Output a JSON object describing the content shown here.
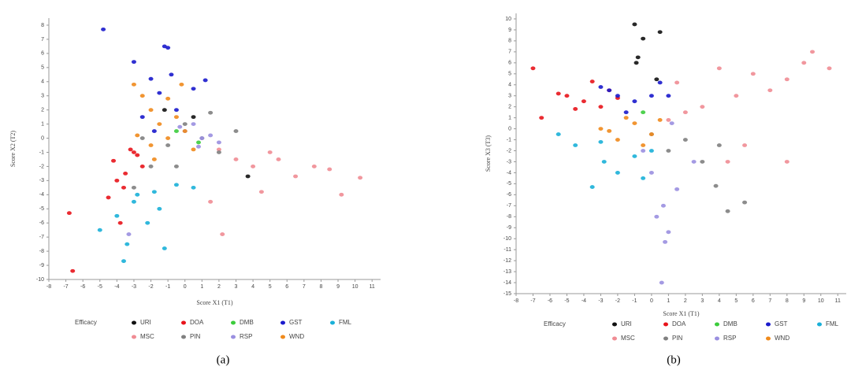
{
  "chart_data": [
    {
      "type": "scatter",
      "caption": "(a)",
      "xlabel": "Score X1 (T1)",
      "ylabel": "Score X2 (T2)",
      "legend_title": "Efficacy",
      "xlim": [
        -8,
        11.5
      ],
      "xticks": [
        -8,
        -7,
        -6,
        -5,
        -4,
        -3,
        -2,
        -1,
        0,
        1,
        2,
        3,
        4,
        5,
        6,
        7,
        8,
        9,
        10,
        11
      ],
      "ylim": [
        -10,
        8.5
      ],
      "yticks": [
        -10,
        -9,
        -8,
        -7,
        -6,
        -5,
        -4,
        -3,
        -2,
        -1,
        0,
        1,
        2,
        3,
        4,
        5,
        6,
        7,
        8
      ],
      "series": [
        {
          "name": "URI",
          "color": "#111111",
          "x": [
            3.7,
            -1.2,
            0.5
          ],
          "values": [
            -2.7,
            2,
            1.5
          ]
        },
        {
          "name": "DOA",
          "color": "#e8141b",
          "x": [
            -6.8,
            -6.6,
            -4.5,
            -4,
            -3.5,
            -3,
            -3.8,
            -4.2,
            -2.8,
            -3.2,
            -3.6,
            -2.5
          ],
          "values": [
            -5.3,
            -9.4,
            -4.2,
            -3,
            -2.5,
            -1,
            -6,
            -1.6,
            -1.2,
            -0.8,
            -3.5,
            -2
          ]
        },
        {
          "name": "DMB",
          "color": "#3ccc3c",
          "x": [
            -0.5,
            0.8
          ],
          "values": [
            0.5,
            -0.3
          ]
        },
        {
          "name": "GST",
          "color": "#1a1acc",
          "x": [
            -4.8,
            -3,
            -1.2,
            -1,
            -0.8,
            -2,
            -1.5,
            -0.5,
            0.5,
            1.2,
            -2.5,
            -1.8
          ],
          "values": [
            7.7,
            5.4,
            6.5,
            6.4,
            4.5,
            4.2,
            3.2,
            2,
            3.5,
            4.1,
            1.5,
            0.5
          ]
        },
        {
          "name": "FML",
          "color": "#1ab0d8",
          "x": [
            -3.6,
            -3.4,
            -1.2,
            -5,
            -4,
            -2.2,
            -1.5,
            -2.8,
            -0.5,
            0.5,
            -3,
            -1.8
          ],
          "values": [
            -8.7,
            -7.5,
            -7.8,
            -6.5,
            -5.5,
            -6,
            -5,
            -4,
            -3.3,
            -3.5,
            -4.5,
            -3.8
          ]
        },
        {
          "name": "MSC",
          "color": "#f08c94",
          "x": [
            10.3,
            9.2,
            8.5,
            7.6,
            6.5,
            5,
            4,
            3,
            2,
            4.5,
            2.2,
            1.5,
            5.5
          ],
          "values": [
            -2.8,
            -4,
            -2.2,
            -2,
            -2.7,
            -1,
            -2,
            -1.5,
            -0.8,
            -3.8,
            -6.8,
            -4.5,
            -1.5
          ]
        },
        {
          "name": "PIN",
          "color": "#808080",
          "x": [
            -3,
            -2,
            -1,
            0,
            1,
            2,
            3,
            1.5,
            -0.5,
            -2.5
          ],
          "values": [
            -3.5,
            -2,
            -0.5,
            1,
            0,
            -1,
            0.5,
            1.8,
            -2,
            0
          ]
        },
        {
          "name": "RSP",
          "color": "#9a8fe0",
          "x": [
            0,
            0.5,
            1,
            1.5,
            0.8,
            -0.3,
            2,
            -3.3
          ],
          "values": [
            0.5,
            1,
            0,
            0.2,
            -0.6,
            0.8,
            -0.3,
            -6.8
          ]
        },
        {
          "name": "WND",
          "color": "#f08a1c",
          "x": [
            -3,
            -2.5,
            -2,
            -1.5,
            -1,
            -0.5,
            0,
            -2,
            -1,
            -1.8,
            -0.2,
            -2.8,
            0.5
          ],
          "values": [
            3.8,
            3,
            2,
            1,
            0,
            1.5,
            0.5,
            -0.5,
            2.8,
            -1.5,
            3.8,
            0.2,
            -0.8
          ]
        }
      ]
    },
    {
      "type": "scatter",
      "caption": "(b)",
      "xlabel": "Score X1 (T1)",
      "ylabel": "Score X3 (T3)",
      "legend_title": "Efficacy",
      "xlim": [
        -8,
        11.5
      ],
      "xticks": [
        -8,
        -7,
        -6,
        -5,
        -4,
        -3,
        -2,
        -1,
        0,
        1,
        2,
        3,
        4,
        5,
        6,
        7,
        8,
        9,
        10,
        11
      ],
      "ylim": [
        -15,
        10.5
      ],
      "yticks": [
        -15,
        -14,
        -13,
        -12,
        -11,
        -10,
        -9,
        -8,
        -7,
        -6,
        -5,
        -4,
        -3,
        -2,
        -1,
        0,
        1,
        2,
        3,
        4,
        5,
        6,
        7,
        8,
        9,
        10
      ],
      "series": [
        {
          "name": "URI",
          "color": "#111111",
          "x": [
            -1,
            -0.5,
            -0.8,
            -0.9,
            0.5,
            0.3
          ],
          "values": [
            9.5,
            8.2,
            6.5,
            6,
            8.8,
            4.5
          ]
        },
        {
          "name": "DOA",
          "color": "#e8141b",
          "x": [
            -7,
            -6.5,
            -5,
            -4,
            -3,
            -2.5,
            -3.5,
            -4.5,
            -2,
            -5.5
          ],
          "values": [
            5.5,
            1,
            3,
            2.5,
            2,
            3.5,
            4.3,
            1.8,
            2.8,
            3.2
          ]
        },
        {
          "name": "DMB",
          "color": "#3ccc3c",
          "x": [
            -0.5
          ],
          "values": [
            1.5
          ]
        },
        {
          "name": "GST",
          "color": "#1a1acc",
          "x": [
            -3,
            -2,
            -1,
            0,
            1,
            -1.5,
            -2.5,
            0.5
          ],
          "values": [
            3.8,
            3,
            2.5,
            3,
            3,
            1.5,
            3.5,
            4.2
          ]
        },
        {
          "name": "FML",
          "color": "#1ab0d8",
          "x": [
            -5.5,
            -4.5,
            -3.5,
            -2.8,
            -2,
            -1,
            -0.5,
            -3,
            0
          ],
          "values": [
            -0.5,
            -1.5,
            -5.3,
            -3,
            -4,
            -2.5,
            -4.5,
            -1.2,
            -2
          ]
        },
        {
          "name": "MSC",
          "color": "#f08c94",
          "x": [
            10.5,
            9.5,
            9,
            8,
            7,
            6,
            5,
            4,
            3,
            2,
            1,
            5.5,
            4.5,
            8,
            1.5
          ],
          "values": [
            5.5,
            7,
            6,
            4.5,
            3.5,
            5,
            3,
            5.5,
            2,
            1.5,
            0.8,
            -1.5,
            -3,
            -3,
            4.2
          ]
        },
        {
          "name": "PIN",
          "color": "#808080",
          "x": [
            3.8,
            4.5,
            5.5,
            3,
            2,
            1,
            4,
            0
          ],
          "values": [
            -5.2,
            -7.5,
            -6.7,
            -3,
            -1,
            -2,
            -1.5,
            -0.5
          ]
        },
        {
          "name": "RSP",
          "color": "#9a8fe0",
          "x": [
            0.6,
            0.8,
            0.3,
            1,
            0.7,
            0,
            1.5,
            2.5,
            -0.5,
            1.2
          ],
          "values": [
            -14,
            -10.3,
            -8,
            -9.4,
            -7,
            -4,
            -5.5,
            -3,
            -2,
            0.5
          ]
        },
        {
          "name": "WND",
          "color": "#f08a1c",
          "x": [
            -3,
            -2,
            -1,
            0,
            -1.5,
            -0.5,
            -2.5,
            0.5
          ],
          "values": [
            0,
            -1,
            0.5,
            -0.5,
            1,
            -1.5,
            -0.2,
            0.8
          ]
        }
      ]
    }
  ]
}
